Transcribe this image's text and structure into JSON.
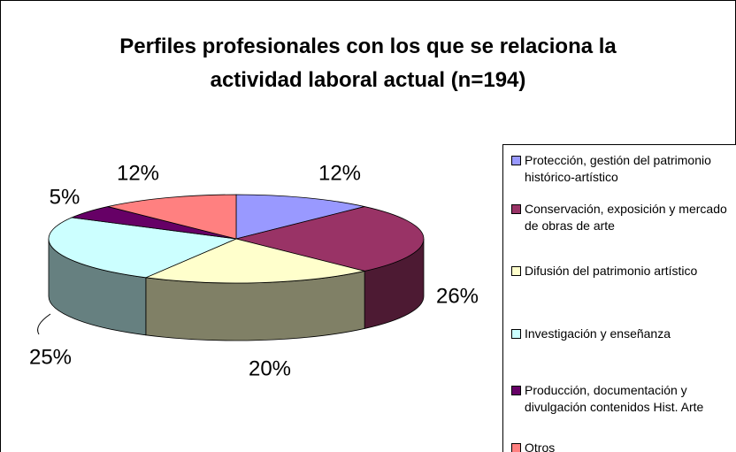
{
  "chart_data": {
    "type": "pie3d",
    "title": "Perfiles profesionales con los que se relaciona la actividad laboral actual (n=194)",
    "categories": [
      "Protección, gestión del patrimonio histórico-artístico",
      "Conservación, exposición y mercado de obras de arte",
      "Difusión del patrimonio artístico",
      "Investigación y enseñanza",
      "Producción, documentación y divulgación contenidos Hist. Arte",
      "Otros"
    ],
    "values": [
      12,
      26,
      20,
      25,
      5,
      12
    ],
    "value_labels": [
      "12%",
      "26%",
      "20%",
      "25%",
      "5%",
      "12%"
    ],
    "colors": [
      "#9999ff",
      "#993366",
      "#ffffcc",
      "#ccffff",
      "#660066",
      "#ff8080"
    ],
    "legend": "right"
  }
}
